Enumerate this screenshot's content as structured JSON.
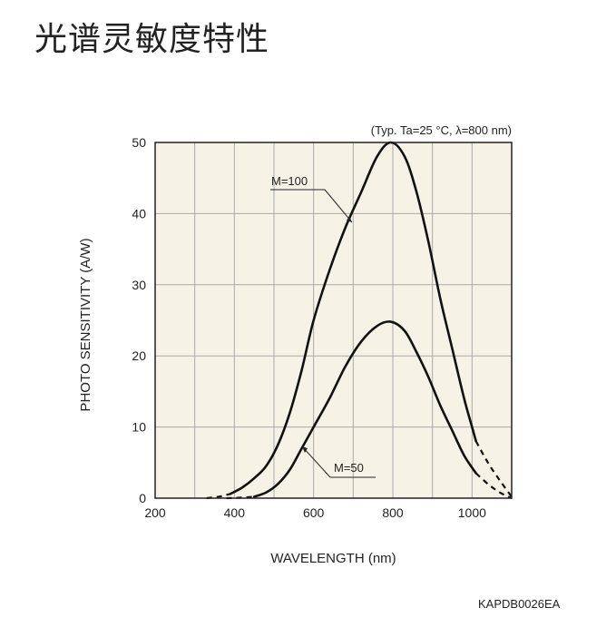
{
  "page": {
    "title": "光谱灵敏度特性",
    "footer_code": "KAPDB0026EA"
  },
  "chart_data": {
    "type": "line",
    "title": "",
    "conditions": "(Typ. Ta=25 °C, λ=800 nm)",
    "xlabel": "WAVELENGTH (nm)",
    "ylabel": "PHOTO SENSITIVITY (A/W)",
    "xlim": [
      200,
      1100
    ],
    "ylim": [
      0,
      50
    ],
    "xticks": [
      200,
      400,
      600,
      800,
      1000
    ],
    "yticks": [
      0,
      10,
      20,
      30,
      40,
      50
    ],
    "grid": true,
    "background": "#f6f3e6",
    "series": [
      {
        "name": "M=100",
        "solid": [
          [
            390,
            0.6
          ],
          [
            420,
            1.5
          ],
          [
            450,
            2.8
          ],
          [
            480,
            4.5
          ],
          [
            510,
            7.5
          ],
          [
            540,
            12
          ],
          [
            570,
            18
          ],
          [
            600,
            25
          ],
          [
            640,
            32
          ],
          [
            680,
            38
          ],
          [
            720,
            43
          ],
          [
            760,
            48
          ],
          [
            795,
            50
          ],
          [
            830,
            48
          ],
          [
            860,
            43
          ],
          [
            890,
            36
          ],
          [
            920,
            28
          ],
          [
            950,
            21
          ],
          [
            980,
            14
          ],
          [
            1000,
            10
          ],
          [
            1010,
            8
          ]
        ],
        "dashed": [
          [
            1010,
            8
          ],
          [
            1040,
            5
          ],
          [
            1070,
            2.5
          ],
          [
            1100,
            0.2
          ]
        ]
      },
      {
        "name": "M=50",
        "solid": [
          [
            450,
            0.2
          ],
          [
            480,
            0.8
          ],
          [
            510,
            2
          ],
          [
            540,
            4
          ],
          [
            570,
            7
          ],
          [
            600,
            10
          ],
          [
            640,
            14
          ],
          [
            680,
            18.5
          ],
          [
            720,
            22
          ],
          [
            760,
            24.2
          ],
          [
            795,
            24.8
          ],
          [
            830,
            23.5
          ],
          [
            860,
            20.5
          ],
          [
            890,
            17
          ],
          [
            920,
            13
          ],
          [
            950,
            9.5
          ],
          [
            980,
            6
          ],
          [
            1010,
            3.5
          ]
        ],
        "dashed": [
          [
            1010,
            3.5
          ],
          [
            1040,
            2
          ],
          [
            1070,
            0.8
          ],
          [
            1100,
            0
          ]
        ]
      }
    ],
    "prefix_dashes": [
      {
        "series": "M=100",
        "points": [
          [
            330,
            0
          ],
          [
            360,
            0.2
          ],
          [
            390,
            0.6
          ]
        ]
      },
      {
        "series": "M=50",
        "points": [
          [
            380,
            0
          ],
          [
            410,
            0.05
          ],
          [
            450,
            0.2
          ]
        ]
      }
    ],
    "annotations": [
      {
        "text": "M=100",
        "at": [
          880,
          44
        ]
      },
      {
        "text": "M=50",
        "at": [
          570,
          13
        ]
      }
    ]
  }
}
